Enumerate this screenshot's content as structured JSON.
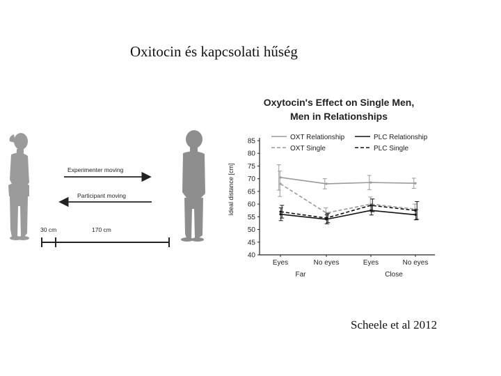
{
  "slide": {
    "title": "Oxitocin és kapcsolati hűség",
    "citation": "Scheele et al 2012"
  },
  "diagram": {
    "arrow_right_label": "Experimenter moving",
    "arrow_left_label": "Participant moving",
    "scale_short": "30 cm",
    "scale_long": "170 cm"
  },
  "chart_data": {
    "type": "line",
    "title_line1": "Oxytocin's Effect on Single Men,",
    "title_line2": "Men in Relationships",
    "ylabel": "Ideal distance [cm]",
    "ylim": [
      40,
      85
    ],
    "yticks": [
      "40",
      "45",
      "50",
      "55",
      "60",
      "65",
      "70",
      "75",
      "80",
      "85"
    ],
    "categories": [
      "Eyes",
      "No eyes",
      "Eyes",
      "No eyes"
    ],
    "groups": [
      "Far",
      "Close"
    ],
    "series": [
      {
        "name": "OXT Relationship",
        "color": "#9a9a9a",
        "dash": "solid",
        "values": [
          70.5,
          68.0,
          68.5,
          68.2
        ],
        "errors": [
          5.0,
          2.0,
          2.8,
          2.0
        ]
      },
      {
        "name": "OXT Single",
        "color": "#9a9a9a",
        "dash": "dashed",
        "values": [
          68.0,
          56.5,
          60.0,
          58.0
        ],
        "errors": [
          5.0,
          2.0,
          2.8,
          2.0
        ]
      },
      {
        "name": "PLC Relationship",
        "color": "#111111",
        "dash": "solid",
        "values": [
          56.0,
          54.0,
          57.5,
          55.8
        ],
        "errors": [
          2.5,
          1.8,
          1.8,
          2.0
        ]
      },
      {
        "name": "PLC Single",
        "color": "#111111",
        "dash": "dashed",
        "values": [
          57.0,
          54.5,
          59.5,
          57.5
        ],
        "errors": [
          2.5,
          1.8,
          2.5,
          3.5
        ]
      }
    ]
  }
}
